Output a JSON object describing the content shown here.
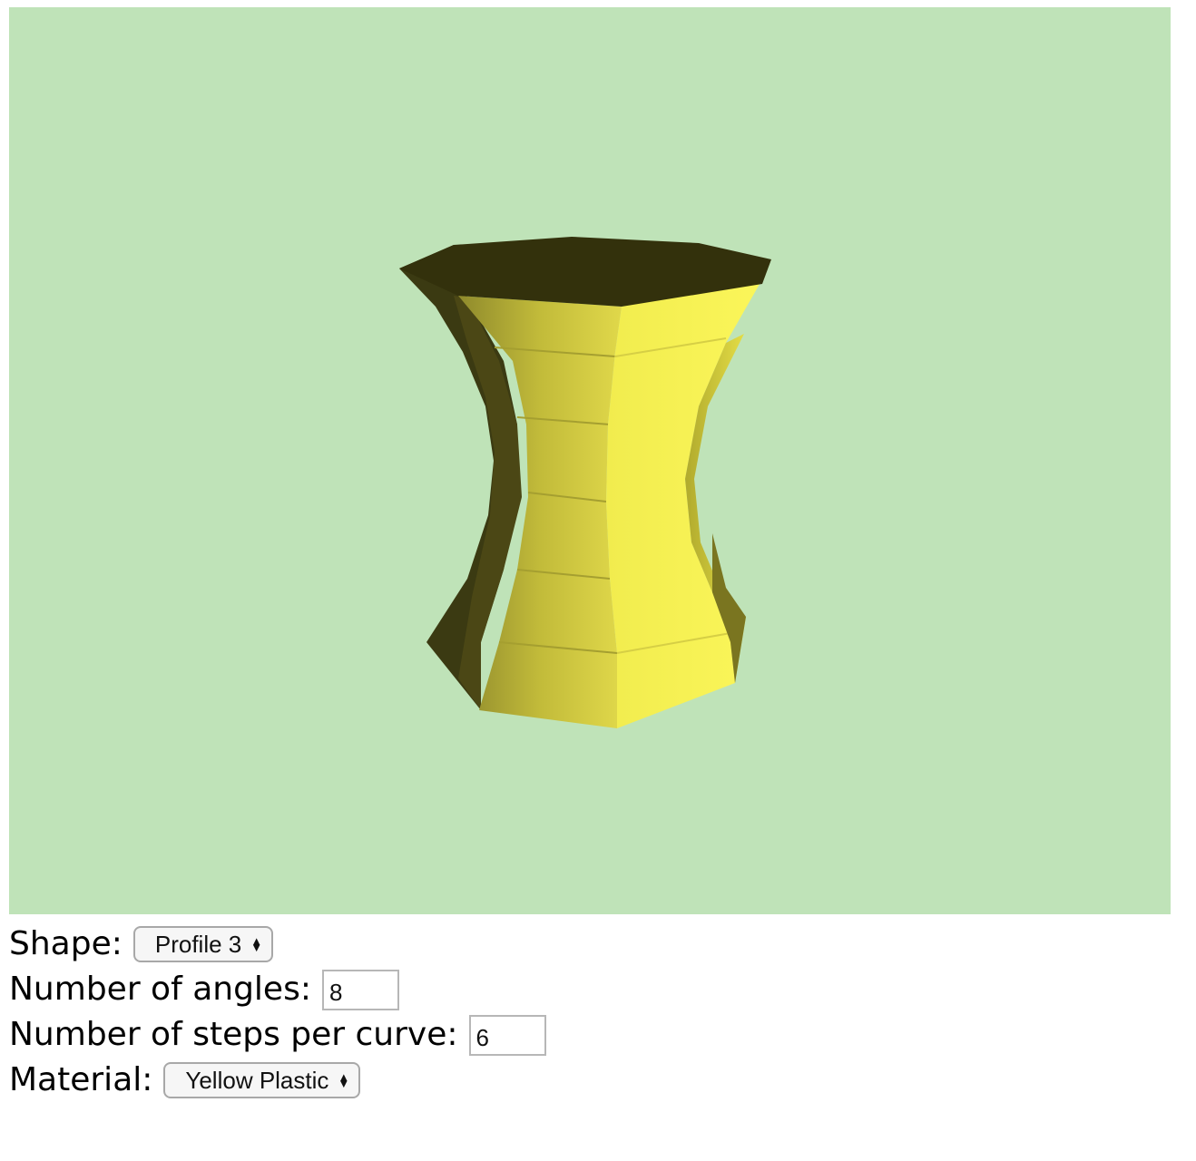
{
  "viewport": {
    "background_color": "#bfe3b8",
    "object": "yellow-vase-3d-model"
  },
  "controls": {
    "shape": {
      "label": "Shape:",
      "value": "Profile 3"
    },
    "angles": {
      "label": "Number of angles:",
      "value": "8"
    },
    "steps": {
      "label": "Number of steps per curve:",
      "value": "6"
    },
    "material": {
      "label": "Material:",
      "value": "Yellow Plastic"
    }
  },
  "icons": {
    "select_arrows": "up-down-chevron-icon"
  }
}
